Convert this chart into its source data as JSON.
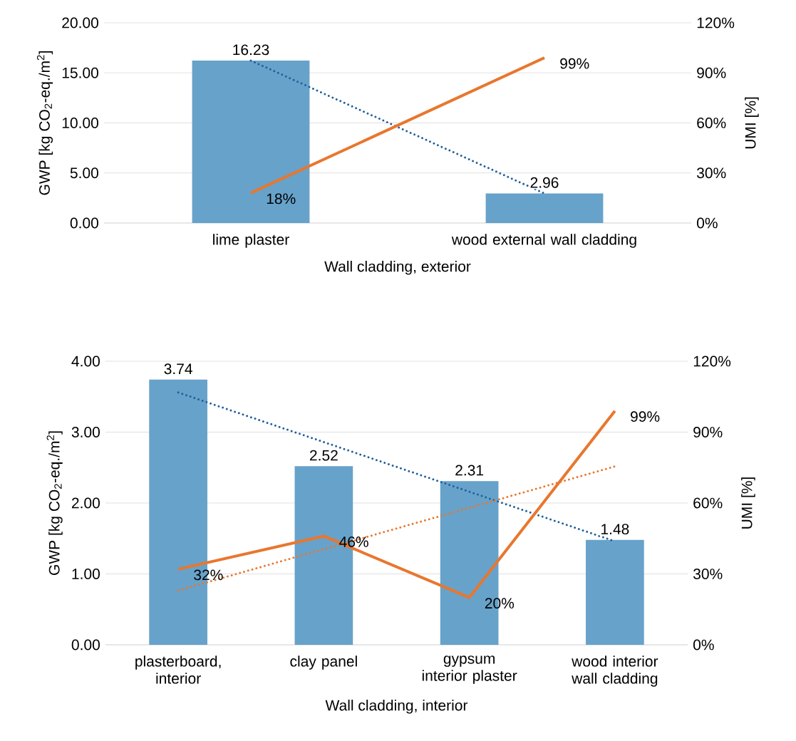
{
  "chart_data": [
    {
      "type": "bar",
      "categories": [
        "lime plaster",
        "wood external wall cladding"
      ],
      "xlabel": "Wall cladding, exterior",
      "ylabel": "GWP [kg CO$_{2}$-eq./m$^{2}$]",
      "y2label": "UMI [%]",
      "ylim": [
        0,
        20
      ],
      "yticks": [
        {
          "value": 0,
          "label": "0.00"
        },
        {
          "value": 5,
          "label": "5.00"
        },
        {
          "value": 10,
          "label": "10.00"
        },
        {
          "value": 15,
          "label": "15.00"
        },
        {
          "value": 20,
          "label": "20.00"
        }
      ],
      "y2lim": [
        0,
        120
      ],
      "y2ticks": [
        {
          "value": 0,
          "label": "0%"
        },
        {
          "value": 30,
          "label": "30%"
        },
        {
          "value": 60,
          "label": "60%"
        },
        {
          "value": 90,
          "label": "90%"
        },
        {
          "value": 120,
          "label": "120%"
        }
      ],
      "grid": "y",
      "series": [
        {
          "color": "#67a2ca",
          "values": [
            16.23,
            2.96
          ],
          "value_labels": [
            "16.23",
            "2.96"
          ]
        },
        {
          "type": "line",
          "color": "#1f5f9a",
          "line_style": "dotted",
          "values": [
            16.23,
            2.96
          ]
        },
        {
          "type": "line",
          "axis": "y2",
          "color": "#e8772e",
          "line_style": "solid",
          "values": [
            18,
            99
          ],
          "value_labels": [
            "18%",
            "99%"
          ]
        }
      ]
    },
    {
      "type": "bar",
      "categories": [
        "plasterboard, interior",
        "clay panel",
        "gypsum interior plaster",
        "wood interior wall cladding"
      ],
      "xlabel": "Wall cladding, interior",
      "ylabel": "GWP [kg CO$_{2}$-eq./m$^{2}$]",
      "y2label": "UMI [%]",
      "ylim": [
        0,
        4
      ],
      "yticks": [
        {
          "value": 0,
          "label": "0.00"
        },
        {
          "value": 1,
          "label": "1.00"
        },
        {
          "value": 2,
          "label": "2.00"
        },
        {
          "value": 3,
          "label": "3.00"
        },
        {
          "value": 4,
          "label": "4.00"
        }
      ],
      "y2lim": [
        0,
        120
      ],
      "y2ticks": [
        {
          "value": 0,
          "label": "0%"
        },
        {
          "value": 30,
          "label": "30%"
        },
        {
          "value": 60,
          "label": "60%"
        },
        {
          "value": 90,
          "label": "90%"
        },
        {
          "value": 120,
          "label": "120%"
        }
      ],
      "grid": "y",
      "series": [
        {
          "color": "#67a2ca",
          "values": [
            3.74,
            2.52,
            2.31,
            1.48
          ],
          "value_labels": [
            "3.74",
            "2.52",
            "2.31",
            "1.48"
          ]
        },
        {
          "type": "line",
          "color": "#1f5f9a",
          "line_style": "dotted",
          "values": [
            3.56,
            2.86,
            2.16,
            1.46
          ]
        },
        {
          "type": "line",
          "axis": "y2",
          "color": "#e8772e",
          "line_style": "dotted",
          "values": [
            23,
            40.5,
            58,
            75.5
          ]
        },
        {
          "type": "line",
          "axis": "y2",
          "color": "#e8772e",
          "line_style": "solid",
          "values": [
            32,
            46,
            20,
            99
          ],
          "value_labels": [
            "32%",
            "46%",
            "20%",
            "99%"
          ]
        }
      ]
    }
  ]
}
